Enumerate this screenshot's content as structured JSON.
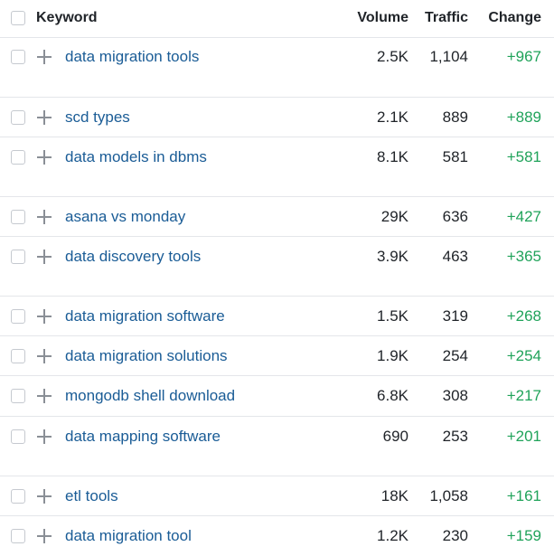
{
  "header": {
    "keyword": "Keyword",
    "volume": "Volume",
    "traffic": "Traffic",
    "change": "Change"
  },
  "rows": [
    {
      "keyword": "data migration tools",
      "volume": "2.5K",
      "traffic": "1,104",
      "change": "+967"
    },
    {
      "keyword": "scd types",
      "volume": "2.1K",
      "traffic": "889",
      "change": "+889"
    },
    {
      "keyword": "data models in dbms",
      "volume": "8.1K",
      "traffic": "581",
      "change": "+581"
    },
    {
      "keyword": "asana vs monday",
      "volume": "29K",
      "traffic": "636",
      "change": "+427"
    },
    {
      "keyword": "data discovery tools",
      "volume": "3.9K",
      "traffic": "463",
      "change": "+365"
    },
    {
      "keyword": "data migration software",
      "volume": "1.5K",
      "traffic": "319",
      "change": "+268"
    },
    {
      "keyword": "data migration solutions",
      "volume": "1.9K",
      "traffic": "254",
      "change": "+254"
    },
    {
      "keyword": "mongodb shell download",
      "volume": "6.8K",
      "traffic": "308",
      "change": "+217"
    },
    {
      "keyword": "data mapping software",
      "volume": "690",
      "traffic": "253",
      "change": "+201"
    },
    {
      "keyword": "etl tools",
      "volume": "18K",
      "traffic": "1,058",
      "change": "+161"
    },
    {
      "keyword": "data migration tool",
      "volume": "1.2K",
      "traffic": "230",
      "change": "+159"
    }
  ]
}
